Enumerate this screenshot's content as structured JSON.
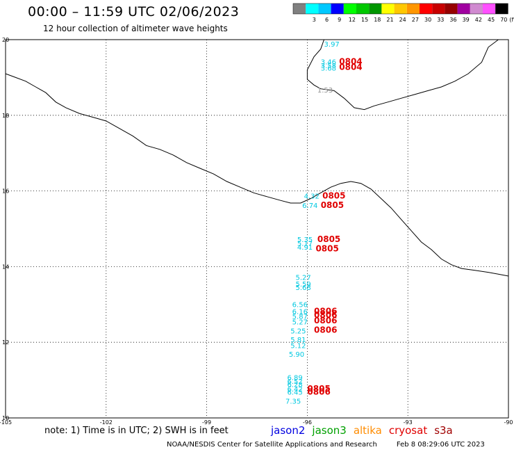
{
  "header": {
    "title": "00:00 – 11:59 UTC 02/06/2023",
    "subtitle": "12 hour collection of altimeter wave heights"
  },
  "colorbar": {
    "unit": "(ft)",
    "bins": [
      {
        "label": "",
        "color": "#808080"
      },
      {
        "label": "3",
        "color": "#00ffff"
      },
      {
        "label": "6",
        "color": "#00c8ff"
      },
      {
        "label": "9",
        "color": "#0000ff"
      },
      {
        "label": "12",
        "color": "#00ff00"
      },
      {
        "label": "15",
        "color": "#00c800"
      },
      {
        "label": "18",
        "color": "#009600"
      },
      {
        "label": "21",
        "color": "#ffff00"
      },
      {
        "label": "24",
        "color": "#ffc800"
      },
      {
        "label": "27",
        "color": "#ff9600"
      },
      {
        "label": "30",
        "color": "#ff0000"
      },
      {
        "label": "33",
        "color": "#c80000"
      },
      {
        "label": "36",
        "color": "#960000"
      },
      {
        "label": "39",
        "color": "#a000a0"
      },
      {
        "label": "42",
        "color": "#d08ad0"
      },
      {
        "label": "45",
        "color": "#ff50ff"
      },
      {
        "label": "70",
        "color": "#000000"
      }
    ]
  },
  "map": {
    "lat_range": [
      10,
      20
    ],
    "lon_range": [
      -105,
      -90
    ],
    "lat_labels": [
      "20",
      "18",
      "16",
      "14",
      "12",
      "10"
    ],
    "lon_labels": [
      "-105",
      "-102",
      "-99",
      "-96",
      "-93",
      "-90"
    ],
    "observations": [
      {
        "lon": -95.5,
        "lat": 19.82,
        "value": "3.97",
        "color": "#00c8e0"
      },
      {
        "lon": -95.6,
        "lat": 19.35,
        "value": "3.46",
        "color": "#00c8e0"
      },
      {
        "lon": -95.6,
        "lat": 19.25,
        "value": "3.58",
        "color": "#00c8e0"
      },
      {
        "lon": -95.6,
        "lat": 19.18,
        "value": "3.68",
        "color": "#00c8e0"
      },
      {
        "lon": -95.7,
        "lat": 18.6,
        "value": "1.53",
        "color": "#909090"
      },
      {
        "lon": -96.1,
        "lat": 15.8,
        "value": "4.32",
        "color": "#00c8e0"
      },
      {
        "lon": -96.15,
        "lat": 15.55,
        "value": "6.74",
        "color": "#00c8e0"
      },
      {
        "lon": -96.3,
        "lat": 14.65,
        "value": "5.35",
        "color": "#00c8e0"
      },
      {
        "lon": -96.3,
        "lat": 14.55,
        "value": "5.17",
        "color": "#00c8e0"
      },
      {
        "lon": -96.3,
        "lat": 14.45,
        "value": "4.91",
        "color": "#00c8e0"
      },
      {
        "lon": -96.35,
        "lat": 13.65,
        "value": "5.27",
        "color": "#00c8e0"
      },
      {
        "lon": -96.35,
        "lat": 13.47,
        "value": "5.59",
        "color": "#00c8e0"
      },
      {
        "lon": -96.35,
        "lat": 13.38,
        "value": "5.68",
        "color": "#00c8e0"
      },
      {
        "lon": -96.45,
        "lat": 12.93,
        "value": "6.56",
        "color": "#00c8e0"
      },
      {
        "lon": -96.45,
        "lat": 12.75,
        "value": "6.16",
        "color": "#00c8e0"
      },
      {
        "lon": -96.45,
        "lat": 12.62,
        "value": "5.87",
        "color": "#00c8e0"
      },
      {
        "lon": -96.45,
        "lat": 12.47,
        "value": "5.27",
        "color": "#00c8e0"
      },
      {
        "lon": -96.5,
        "lat": 12.23,
        "value": "5.25",
        "color": "#00c8e0"
      },
      {
        "lon": -96.5,
        "lat": 12.0,
        "value": "5.81",
        "color": "#00c8e0"
      },
      {
        "lon": -96.5,
        "lat": 11.85,
        "value": "5.12",
        "color": "#00c8e0"
      },
      {
        "lon": -96.55,
        "lat": 11.62,
        "value": "5.90",
        "color": "#00c8e0"
      },
      {
        "lon": -96.6,
        "lat": 11.0,
        "value": "6.89",
        "color": "#00c8e0"
      },
      {
        "lon": -96.6,
        "lat": 10.9,
        "value": "6.52",
        "color": "#00c8e0"
      },
      {
        "lon": -96.6,
        "lat": 10.82,
        "value": "6.28",
        "color": "#00c8e0"
      },
      {
        "lon": -96.6,
        "lat": 10.7,
        "value": "6.42",
        "color": "#00c8e0"
      },
      {
        "lon": -96.6,
        "lat": 10.62,
        "value": "6.45",
        "color": "#00c8e0"
      },
      {
        "lon": -96.65,
        "lat": 10.38,
        "value": "7.35",
        "color": "#00c8e0"
      }
    ],
    "time_labels": [
      {
        "lon": -95.05,
        "lat": 19.35,
        "text": "0804",
        "color": "#e00000"
      },
      {
        "lon": -95.05,
        "lat": 19.2,
        "text": "0804",
        "color": "#e00000"
      },
      {
        "lon": -95.55,
        "lat": 15.8,
        "text": "0805",
        "color": "#e00000"
      },
      {
        "lon": -95.6,
        "lat": 15.55,
        "text": "0805",
        "color": "#e00000"
      },
      {
        "lon": -95.7,
        "lat": 14.65,
        "text": "0805",
        "color": "#e00000"
      },
      {
        "lon": -95.75,
        "lat": 14.4,
        "text": "0805",
        "color": "#e00000"
      },
      {
        "lon": -95.8,
        "lat": 12.75,
        "text": "0806",
        "color": "#e00000"
      },
      {
        "lon": -95.8,
        "lat": 12.65,
        "text": "0806",
        "color": "#e00000"
      },
      {
        "lon": -95.8,
        "lat": 12.5,
        "text": "0806",
        "color": "#e00000"
      },
      {
        "lon": -95.8,
        "lat": 12.25,
        "text": "0806",
        "color": "#e00000"
      },
      {
        "lon": -96.0,
        "lat": 10.7,
        "text": "0805",
        "color": "#e00000"
      },
      {
        "lon": -96.0,
        "lat": 10.62,
        "text": "0806",
        "color": "#e00000"
      }
    ]
  },
  "footer": {
    "note": "note: 1) Time is in UTC; 2) SWH is in feet",
    "satellites": [
      {
        "name": "jason2",
        "color": "#0000e0"
      },
      {
        "name": "jason3",
        "color": "#00a000"
      },
      {
        "name": "altika",
        "color": "#ff8c00"
      },
      {
        "name": "cryosat",
        "color": "#e00000"
      },
      {
        "name": "s3a",
        "color": "#a00000"
      }
    ],
    "credit": "NOAA/NESDIS Center for Satellite Applications and Research",
    "timestamp": "Feb  8 08:29:06 UTC 2023"
  }
}
